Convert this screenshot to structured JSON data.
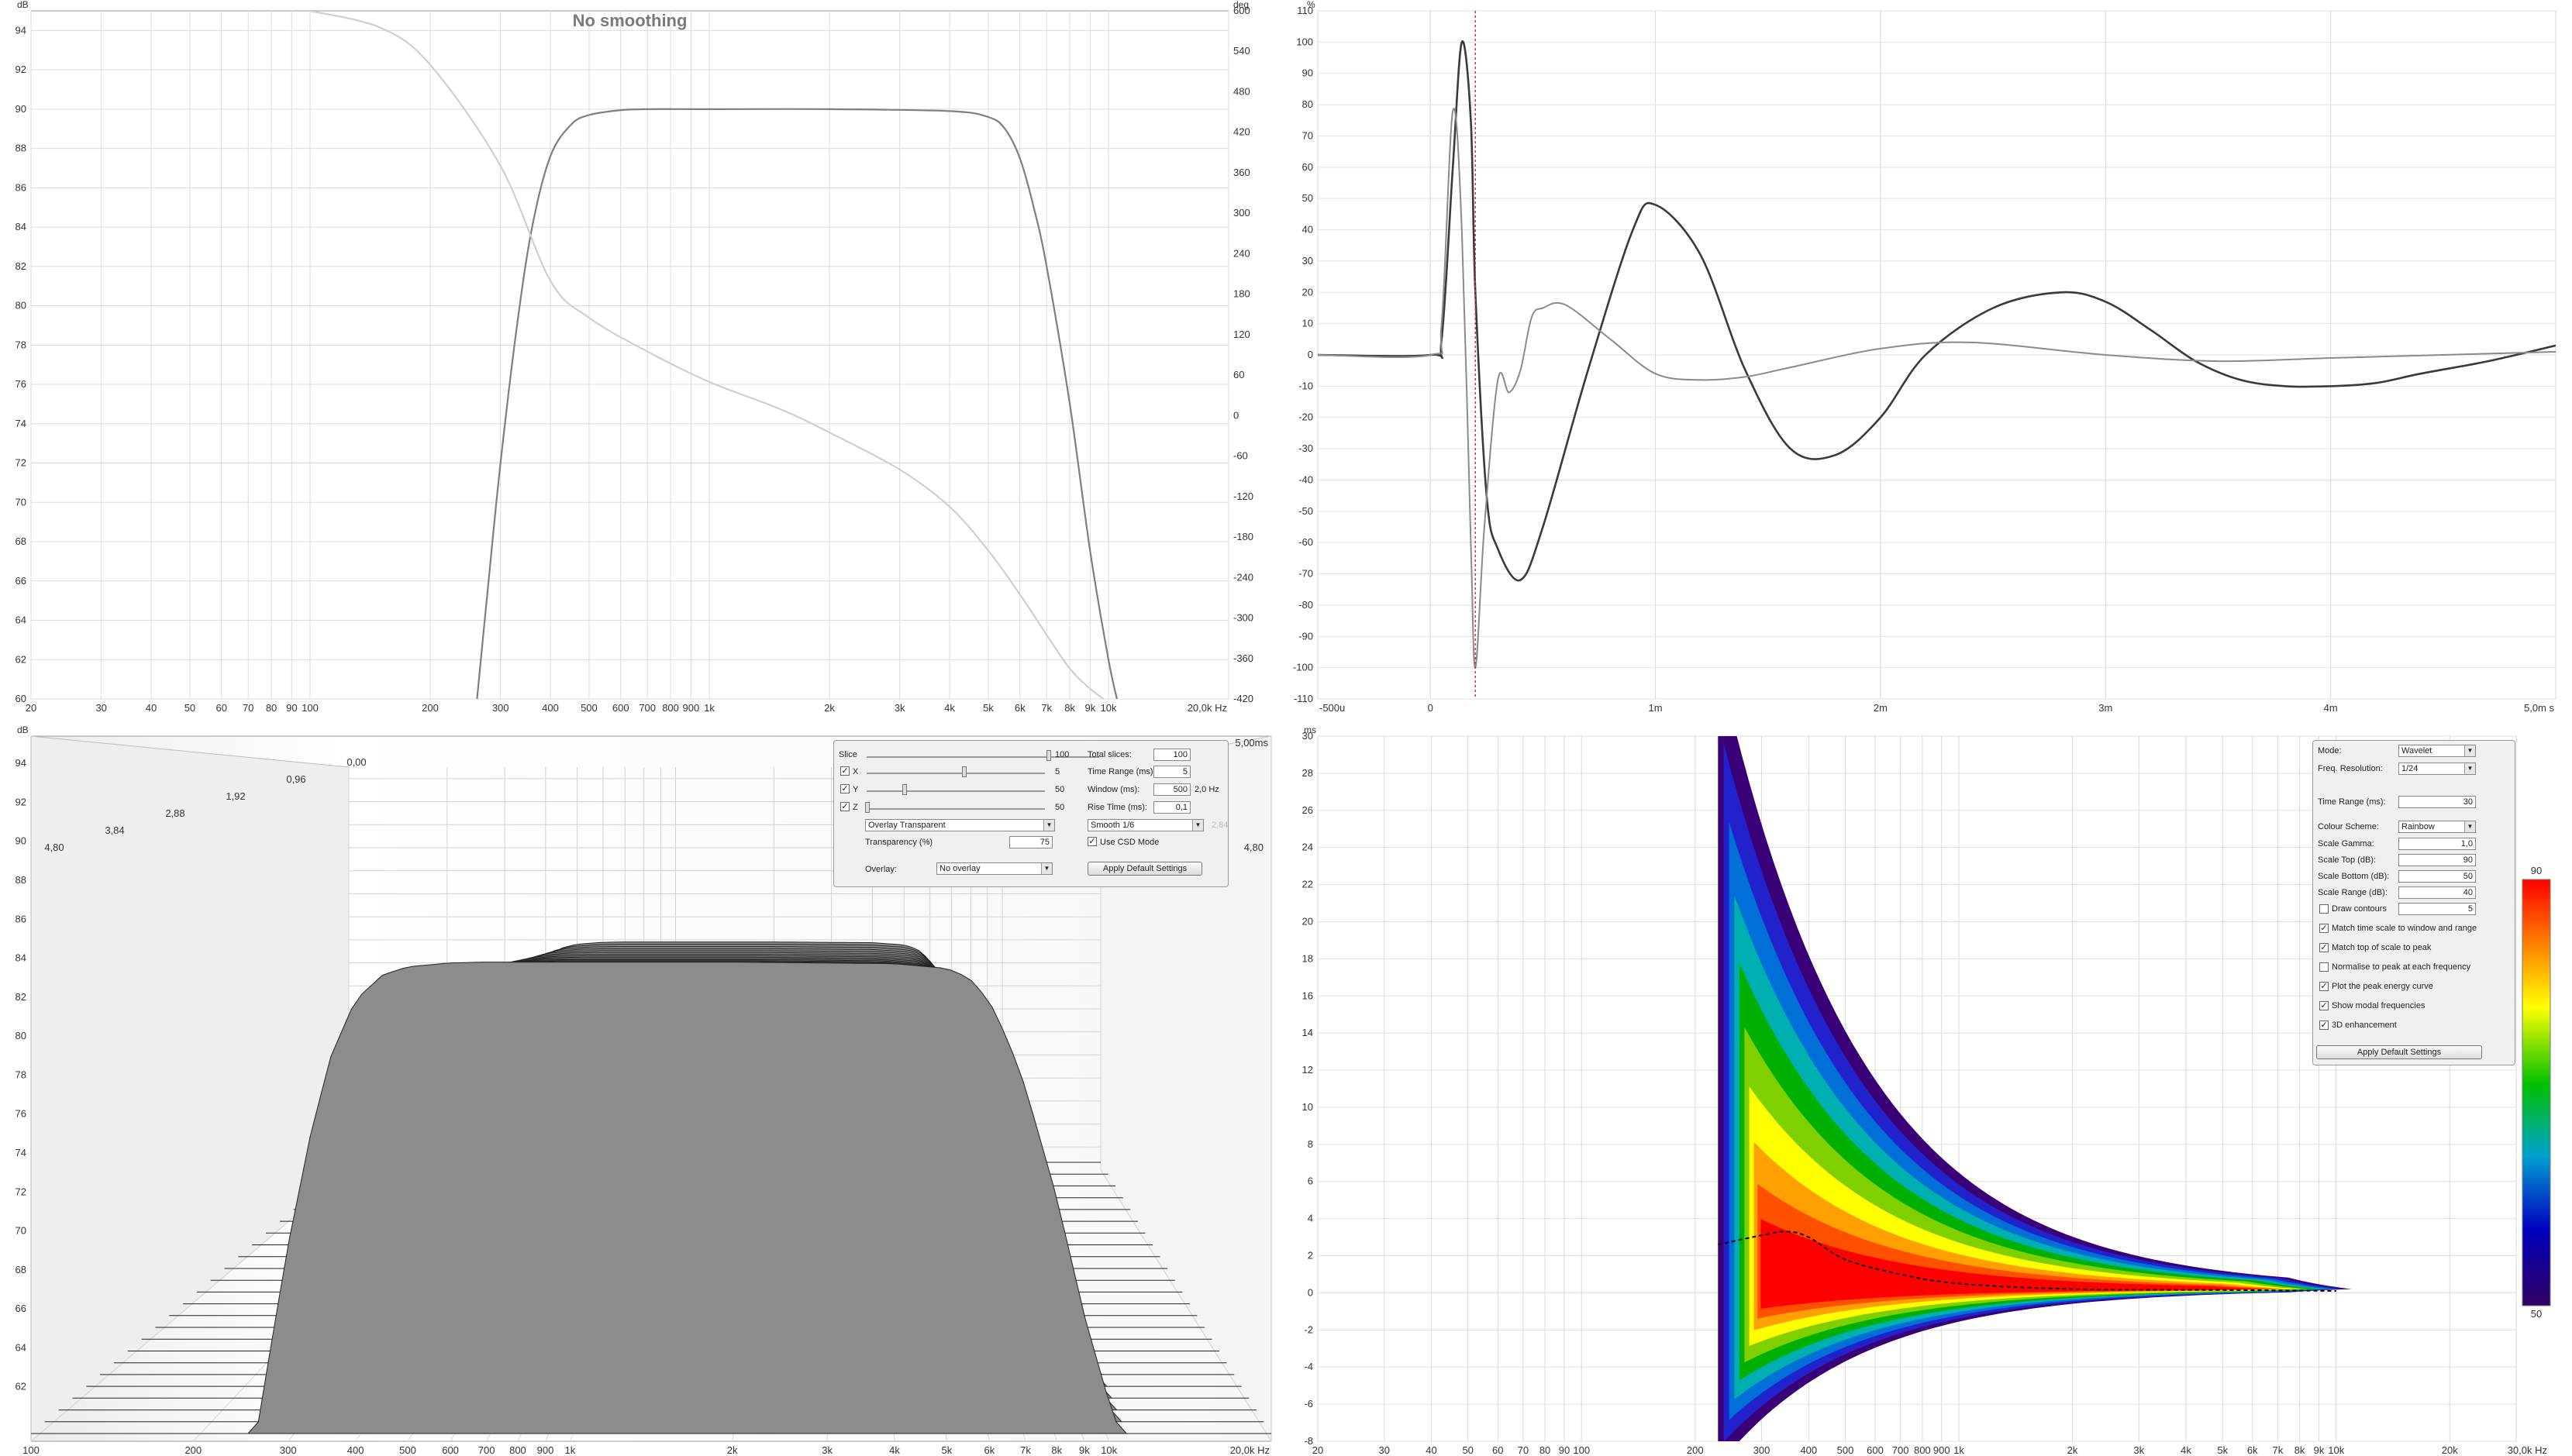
{
  "panels": {
    "freq_response": {
      "title": "No smoothing",
      "y_unit": "dB",
      "y2_unit": "deg",
      "x_unit_suffix": "20,0k Hz"
    },
    "impulse": {
      "y_unit": "%",
      "x_unit_suffix": "5,0m s"
    },
    "waterfall": {
      "y_unit": "dB",
      "time_label": "5,00ms",
      "x_unit_suffix": "20,0k Hz"
    },
    "spectrogram": {
      "y_unit": "ms",
      "x_unit_suffix": "30,0k Hz"
    }
  },
  "chart_data": [
    {
      "type": "line",
      "name": "freq-response",
      "title": "No smoothing",
      "xlabel": "Hz",
      "ylabel": "dB",
      "y2label": "deg",
      "x_scale": "log",
      "xlim": [
        20,
        20000
      ],
      "ylim": [
        60,
        95
      ],
      "y2lim": [
        -420,
        600
      ],
      "x_ticks": [
        20,
        30,
        40,
        50,
        60,
        70,
        80,
        90,
        100,
        200,
        300,
        400,
        500,
        600,
        700,
        800,
        900,
        1000,
        2000,
        3000,
        4000,
        5000,
        6000,
        7000,
        8000,
        9000,
        10000,
        20000
      ],
      "x_tick_labels": [
        "20",
        "30",
        "40",
        "50",
        "60",
        "70",
        "80",
        "90",
        "100",
        "200",
        "300",
        "400",
        "500",
        "600",
        "700",
        "800",
        "900",
        "1k",
        "2k",
        "3k",
        "4k",
        "5k",
        "6k",
        "7k",
        "8k",
        "9k",
        "10k",
        "20,0k Hz"
      ],
      "y_ticks": [
        60,
        62,
        64,
        66,
        68,
        70,
        72,
        74,
        76,
        78,
        80,
        82,
        84,
        86,
        88,
        90,
        92,
        94
      ],
      "y2_ticks": [
        -420,
        -360,
        -300,
        -240,
        -180,
        -120,
        -60,
        0,
        60,
        120,
        180,
        240,
        300,
        360,
        420,
        480,
        540,
        600
      ],
      "grid": true,
      "series": [
        {
          "axis": "left",
          "color": "#7f7f7f",
          "x": [
            262,
            280,
            300,
            330,
            360,
            400,
            450,
            500,
            600,
            700,
            1000,
            2000,
            4000,
            5000,
            5500,
            6000,
            6500,
            7000,
            8000,
            9000,
            10000,
            10500
          ],
          "y": [
            60,
            66,
            72,
            79,
            84,
            87.6,
            89.2,
            89.7,
            89.95,
            90,
            90,
            90,
            89.9,
            89.6,
            89.0,
            87.5,
            85,
            82,
            75,
            67.5,
            62,
            60
          ]
        },
        {
          "axis": "right",
          "color": "#cfcfcf",
          "x": [
            100,
            150,
            200,
            300,
            400,
            500,
            700,
            1000,
            1500,
            2000,
            3000,
            4000,
            5000,
            6000,
            7000,
            8000,
            9000,
            10000
          ],
          "y": [
            600,
            575,
            520,
            370,
            200,
            145,
            95,
            50,
            10,
            -25,
            -80,
            -135,
            -200,
            -265,
            -325,
            -375,
            -405,
            -425
          ]
        }
      ]
    },
    {
      "type": "line",
      "name": "impulse-response",
      "xlabel": "s",
      "ylabel": "%",
      "xlim": [
        -0.0005,
        0.005
      ],
      "ylim": [
        -110,
        110
      ],
      "x_ticks": [
        -0.0005,
        0,
        0.001,
        0.002,
        0.003,
        0.004,
        0.005
      ],
      "x_tick_labels": [
        "-500u",
        "0",
        "1m",
        "2m",
        "3m",
        "4m",
        "5,0m s"
      ],
      "y_ticks": [
        -110,
        -100,
        -90,
        -80,
        -70,
        -60,
        -50,
        -40,
        -30,
        -20,
        -10,
        0,
        10,
        20,
        30,
        40,
        50,
        60,
        70,
        80,
        90,
        100,
        110
      ],
      "cursor_x": 0.0002,
      "grid": true,
      "series": [
        {
          "color": "#3a3a3a",
          "x": [
            -0.0005,
            0,
            5e-05,
            0.0001,
            0.00014,
            0.00018,
            0.0002,
            0.00025,
            0.0003,
            0.0004,
            0.0005,
            0.0007,
            0.0009,
            0.001,
            0.0012,
            0.0014,
            0.0016,
            0.0018,
            0.002,
            0.0022,
            0.0025,
            0.0028,
            0.003,
            0.0032,
            0.0034,
            0.0036,
            0.0038,
            0.004,
            0.0042,
            0.0044,
            0.0047,
            0.005
          ],
          "y": [
            0,
            0,
            5,
            60,
            100,
            75,
            20,
            -45,
            -62,
            -72,
            -55,
            -5,
            40,
            48,
            32,
            -5,
            -30,
            -32,
            -20,
            0,
            15,
            20,
            17,
            8,
            -2,
            -8,
            -10,
            -10,
            -9,
            -6,
            -2,
            3
          ]
        },
        {
          "color": "#8a8a8a",
          "x": [
            -0.0005,
            0,
            5e-05,
            0.0001,
            0.00014,
            0.00018,
            0.0002,
            0.00024,
            0.0003,
            0.00035,
            0.0004,
            0.00045,
            0.0005,
            0.0006,
            0.0008,
            0.001,
            0.0012,
            0.0014,
            0.0016,
            0.002,
            0.0024,
            0.003,
            0.0035,
            0.004,
            0.0045,
            0.005
          ],
          "y": [
            0,
            0,
            10,
            78,
            40,
            -60,
            -100,
            -55,
            -8,
            -12,
            -5,
            12,
            15,
            16,
            5,
            -6,
            -8,
            -7,
            -4,
            2,
            4,
            0,
            -2,
            -1,
            0,
            1
          ]
        }
      ]
    },
    {
      "type": "area",
      "name": "waterfall-csd",
      "xlabel": "Hz",
      "ylabel": "dB",
      "x_scale": "log",
      "xlim": [
        100,
        20000
      ],
      "ylim": [
        60,
        95
      ],
      "x_ticks": [
        100,
        200,
        300,
        400,
        500,
        600,
        700,
        800,
        900,
        1000,
        2000,
        3000,
        4000,
        5000,
        6000,
        7000,
        8000,
        9000,
        10000,
        20000
      ],
      "x_tick_labels": [
        "100",
        "200",
        "300",
        "400",
        "500",
        "600",
        "700",
        "800",
        "900",
        "1k",
        "2k",
        "3k",
        "4k",
        "5k",
        "6k",
        "7k",
        "8k",
        "9k",
        "10k",
        "20,0k Hz"
      ],
      "y_ticks": [
        62,
        64,
        66,
        68,
        70,
        72,
        74,
        76,
        78,
        80,
        82,
        84,
        86,
        88,
        90,
        92,
        94
      ],
      "time_labels": [
        "4,80",
        "3,84",
        "2,88",
        "1,92",
        "0,96",
        "0,00"
      ],
      "right_time_label": "4,80",
      "slices": 100,
      "controls": {
        "slice_label": "Slice",
        "slice_value": "100",
        "x_label": "X",
        "x_value": "5",
        "y_label": "Y",
        "y_value": "50",
        "z_label": "Z",
        "z_value": "50",
        "total_slices_label": "Total slices:",
        "total_slices": "100",
        "time_range_label": "Time Range (ms):",
        "time_range": "5",
        "window_label": "Window (ms):",
        "window": "500",
        "window_hz": "2,0 Hz",
        "rise_time_label": "Rise Time (ms):",
        "rise_time": "0,1",
        "overlay_mode": "Overlay Transparent",
        "smoothing": "Smooth 1/6",
        "transparency_label": "Transparency (%)",
        "transparency": "75",
        "use_csd_label": "Use CSD Mode",
        "overlay_label": "Overlay:",
        "overlay_value": "No overlay",
        "apply_label": "Apply Default Settings",
        "faded_value": "2,84"
      }
    },
    {
      "type": "heatmap",
      "name": "wavelet-spectrogram",
      "xlabel": "Hz",
      "ylabel": "ms",
      "x_scale": "log",
      "xlim": [
        20,
        30000
      ],
      "ylim": [
        -8,
        30
      ],
      "x_ticks": [
        20,
        30,
        40,
        50,
        60,
        70,
        80,
        90,
        100,
        200,
        300,
        400,
        500,
        600,
        700,
        800,
        900,
        1000,
        2000,
        3000,
        4000,
        5000,
        6000,
        7000,
        8000,
        9000,
        10000,
        20000,
        30000
      ],
      "x_tick_labels": [
        "20",
        "30",
        "40",
        "50",
        "60",
        "70",
        "80",
        "90",
        "100",
        "200",
        "300",
        "400",
        "500",
        "600",
        "700",
        "800",
        "900",
        "1k",
        "2k",
        "3k",
        "4k",
        "5k",
        "6k",
        "7k",
        "8k",
        "9k",
        "10k",
        "20k",
        "30,0k Hz"
      ],
      "y_ticks": [
        -8,
        -6,
        -4,
        -2,
        0,
        2,
        4,
        6,
        8,
        10,
        12,
        14,
        16,
        18,
        20,
        22,
        24,
        26,
        28,
        30
      ],
      "scale_top": 90,
      "scale_bottom": 50,
      "peak_energy": {
        "x": [
          230,
          300,
          350,
          400,
          500,
          700,
          1000,
          2000,
          5000,
          10000
        ],
        "y": [
          2.6,
          3.1,
          3.3,
          3.0,
          1.8,
          1.0,
          0.5,
          0.2,
          0.15,
          0.1
        ]
      },
      "controls": {
        "mode_label": "Mode:",
        "mode": "Wavelet",
        "freq_res_label": "Freq. Resolution:",
        "freq_res": "1/24",
        "time_range_label": "Time Range (ms):",
        "time_range": "30",
        "colour_scheme_label": "Colour Scheme:",
        "colour_scheme": "Rainbow",
        "gamma_label": "Scale Gamma:",
        "gamma": "1,0",
        "top_label": "Scale Top (dB):",
        "top": "90",
        "bottom_label": "Scale Bottom (dB):",
        "bottom": "50",
        "range_label": "Scale Range (dB):",
        "range": "40",
        "contours_label": "Draw contours",
        "contours": "5",
        "opt1": "Match time scale to window and range",
        "opt2": "Match top of scale to peak",
        "opt3": "Normalise to peak at each frequency",
        "opt4": "Plot the peak energy curve",
        "opt5": "Show modal frequencies",
        "opt6": "3D enhancement",
        "apply_label": "Apply Default Settings",
        "legend_top": "90",
        "legend_bottom": "50"
      }
    }
  ]
}
